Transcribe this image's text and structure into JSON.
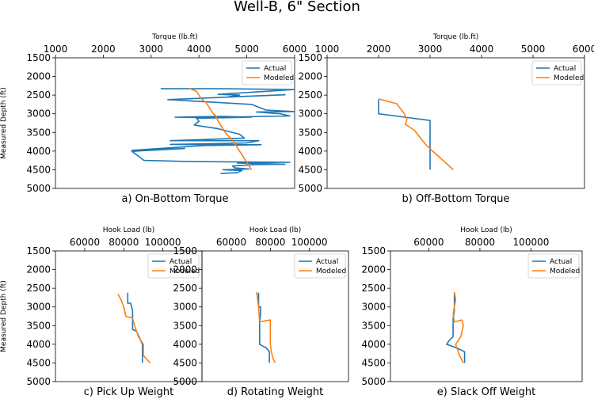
{
  "figure": {
    "title": "Well-B, 6\" Section"
  },
  "chart_data": [
    {
      "type": "line",
      "caption": "a) On-Bottom Torque",
      "xlabel": "Torque (lb.ft)",
      "ylabel": "Measured Depth (ft)",
      "xlim": [
        1000,
        6000
      ],
      "ylim": [
        5000,
        1500
      ],
      "xticks": [
        1000,
        2000,
        3000,
        4000,
        5000,
        6000
      ],
      "yticks": [
        1500,
        2000,
        2500,
        3000,
        3500,
        4000,
        4500,
        5000
      ],
      "legend": {
        "position": "top-right",
        "entries": [
          "Actual",
          "Modeled"
        ]
      },
      "series": [
        {
          "name": "Actual",
          "color": "#1f77b4",
          "points": [
            [
              3200,
              2330
            ],
            [
              4450,
              2330
            ],
            [
              6000,
              2350
            ],
            [
              4400,
              2480
            ],
            [
              4850,
              2500
            ],
            [
              4600,
              2550
            ],
            [
              5800,
              2490
            ],
            [
              3350,
              2620
            ],
            [
              5100,
              2750
            ],
            [
              5400,
              2900
            ],
            [
              6000,
              2940
            ],
            [
              5200,
              2950
            ],
            [
              5700,
              3000
            ],
            [
              5900,
              3060
            ],
            [
              4950,
              3080
            ],
            [
              3950,
              3100
            ],
            [
              3500,
              3090
            ],
            [
              4500,
              3070
            ],
            [
              5100,
              3090
            ],
            [
              3950,
              3120
            ],
            [
              4000,
              3200
            ],
            [
              3900,
              3300
            ],
            [
              4400,
              3400
            ],
            [
              4850,
              3550
            ],
            [
              4950,
              3650
            ],
            [
              3400,
              3720
            ],
            [
              5250,
              3720
            ],
            [
              5000,
              3780
            ],
            [
              4300,
              3800
            ],
            [
              3400,
              3820
            ],
            [
              5300,
              3830
            ],
            [
              4100,
              3850
            ],
            [
              2600,
              3980
            ],
            [
              3700,
              3930
            ],
            [
              2800,
              3990
            ],
            [
              2600,
              4010
            ],
            [
              2750,
              4150
            ],
            [
              2850,
              4250
            ],
            [
              3800,
              4280
            ],
            [
              5900,
              4300
            ],
            [
              5050,
              4310
            ],
            [
              4800,
              4320
            ],
            [
              5800,
              4350
            ],
            [
              5200,
              4360
            ],
            [
              4700,
              4400
            ],
            [
              4750,
              4450
            ],
            [
              5050,
              4480
            ],
            [
              4500,
              4500
            ],
            [
              4900,
              4520
            ],
            [
              4800,
              4580
            ],
            [
              4450,
              4600
            ]
          ]
        },
        {
          "name": "Modeled",
          "color": "#ff7f0e",
          "points": [
            [
              3800,
              2320
            ],
            [
              3950,
              2400
            ],
            [
              4000,
              2500
            ],
            [
              4050,
              2600
            ],
            [
              4150,
              2700
            ],
            [
              4200,
              2800
            ],
            [
              4250,
              2900
            ],
            [
              4300,
              3000
            ],
            [
              4350,
              3050
            ],
            [
              4400,
              3200
            ],
            [
              4450,
              3300
            ],
            [
              4500,
              3400
            ],
            [
              4550,
              3500
            ],
            [
              4620,
              3600
            ],
            [
              4700,
              3700
            ],
            [
              4750,
              3800
            ],
            [
              4800,
              3900
            ],
            [
              4850,
              4000
            ],
            [
              4900,
              4100
            ],
            [
              4950,
              4200
            ],
            [
              5000,
              4300
            ],
            [
              5050,
              4400
            ],
            [
              5100,
              4500
            ]
          ]
        }
      ]
    },
    {
      "type": "line",
      "caption": "b) Off-Bottom Torque",
      "xlabel": "Torque (lb.ft)",
      "ylabel": "",
      "xlim": [
        1000,
        6000
      ],
      "ylim": [
        5000,
        1500
      ],
      "xticks": [
        1000,
        2000,
        3000,
        4000,
        5000,
        6000
      ],
      "yticks": [
        1500,
        2000,
        2500,
        3000,
        3500,
        4000,
        4500,
        5000
      ],
      "legend": {
        "position": "top-right",
        "entries": [
          "Actual",
          "Modeled"
        ]
      },
      "series": [
        {
          "name": "Actual",
          "color": "#1f77b4",
          "points": [
            [
              2000,
              2620
            ],
            [
              2000,
              3000
            ],
            [
              3000,
              3180
            ],
            [
              3000,
              4500
            ]
          ]
        },
        {
          "name": "Modeled",
          "color": "#ff7f0e",
          "points": [
            [
              2000,
              2600
            ],
            [
              2350,
              2730
            ],
            [
              2500,
              3000
            ],
            [
              2550,
              3150
            ],
            [
              2520,
              3280
            ],
            [
              2700,
              3450
            ],
            [
              2900,
              3800
            ],
            [
              3050,
              4000
            ],
            [
              3250,
              4250
            ],
            [
              3450,
              4500
            ]
          ]
        }
      ]
    },
    {
      "type": "line",
      "caption": "c) Pick Up Weight",
      "xlabel": "Hook Load (lb)",
      "ylabel": "Measured Depth (ft)",
      "xlim": [
        45000,
        120000
      ],
      "ylim": [
        5000,
        1500
      ],
      "xticks": [
        60000,
        80000,
        100000
      ],
      "yticks": [
        1500,
        2000,
        2500,
        3000,
        3500,
        4000,
        4500,
        5000
      ],
      "legend": {
        "position": "top-right",
        "entries": [
          "Actual",
          "Modeled"
        ]
      },
      "series": [
        {
          "name": "Actual",
          "color": "#1f77b4",
          "points": [
            [
              82000,
              2620
            ],
            [
              82000,
              2900
            ],
            [
              83500,
              2900
            ],
            [
              84500,
              3100
            ],
            [
              84500,
              3600
            ],
            [
              86500,
              3650
            ],
            [
              89500,
              4000
            ],
            [
              89500,
              4500
            ]
          ]
        },
        {
          "name": "Modeled",
          "color": "#ff7f0e",
          "points": [
            [
              77000,
              2650
            ],
            [
              78500,
              2800
            ],
            [
              80000,
              3000
            ],
            [
              81000,
              3250
            ],
            [
              84500,
              3300
            ],
            [
              85500,
              3500
            ],
            [
              87500,
              3800
            ],
            [
              90000,
              4000
            ],
            [
              90000,
              4300
            ],
            [
              93500,
              4500
            ]
          ]
        }
      ]
    },
    {
      "type": "line",
      "caption": "d) Rotating Weight",
      "xlabel": "Hook Load (lb)",
      "ylabel": "",
      "xlim": [
        45000,
        120000
      ],
      "ylim": [
        5000,
        1500
      ],
      "xticks": [
        60000,
        80000,
        100000
      ],
      "yticks": [
        1500,
        2000,
        2500,
        3000,
        3500,
        4000,
        4500,
        5000
      ],
      "legend": {
        "position": "top-right",
        "entries": [
          "Actual",
          "Modeled"
        ]
      },
      "series": [
        {
          "name": "Actual",
          "color": "#1f77b4",
          "points": [
            [
              74000,
              2620
            ],
            [
              74000,
              3000
            ],
            [
              75000,
              3000
            ],
            [
              75000,
              3200
            ],
            [
              74500,
              3400
            ],
            [
              74500,
              4000
            ],
            [
              78000,
              4100
            ],
            [
              79500,
              4200
            ],
            [
              79500,
              4500
            ]
          ]
        },
        {
          "name": "Modeled",
          "color": "#ff7f0e",
          "points": [
            [
              73000,
              2600
            ],
            [
              73500,
              2800
            ],
            [
              74000,
              3000
            ],
            [
              74500,
              3400
            ],
            [
              80000,
              3350
            ],
            [
              80000,
              4000
            ],
            [
              80500,
              4200
            ],
            [
              81500,
              4400
            ],
            [
              82500,
              4500
            ]
          ]
        }
      ]
    },
    {
      "type": "line",
      "caption": "e) Slack Off Weight",
      "xlabel": "Hook Load (lb)",
      "ylabel": "",
      "xlim": [
        45000,
        120000
      ],
      "ylim": [
        5000,
        1500
      ],
      "xticks": [
        60000,
        80000,
        100000
      ],
      "yticks": [
        1500,
        2000,
        2500,
        3000,
        3500,
        4000,
        4500,
        5000
      ],
      "legend": {
        "position": "top-right",
        "entries": [
          "Actual",
          "Modeled"
        ]
      },
      "series": [
        {
          "name": "Actual",
          "color": "#1f77b4",
          "points": [
            [
              70000,
              2620
            ],
            [
              70000,
              3100
            ],
            [
              69500,
              3300
            ],
            [
              69500,
              3800
            ],
            [
              68000,
              3900
            ],
            [
              67000,
              4000
            ],
            [
              71000,
              4100
            ],
            [
              74000,
              4200
            ],
            [
              74000,
              4500
            ]
          ]
        },
        {
          "name": "Modeled",
          "color": "#ff7f0e",
          "points": [
            [
              70000,
              2600
            ],
            [
              70500,
              2800
            ],
            [
              70000,
              3000
            ],
            [
              69500,
              3200
            ],
            [
              70000,
              3400
            ],
            [
              73000,
              3350
            ],
            [
              73500,
              3500
            ],
            [
              72500,
              3800
            ],
            [
              70500,
              4000
            ],
            [
              71500,
              4200
            ],
            [
              72000,
              4300
            ],
            [
              73500,
              4500
            ]
          ]
        }
      ]
    }
  ]
}
